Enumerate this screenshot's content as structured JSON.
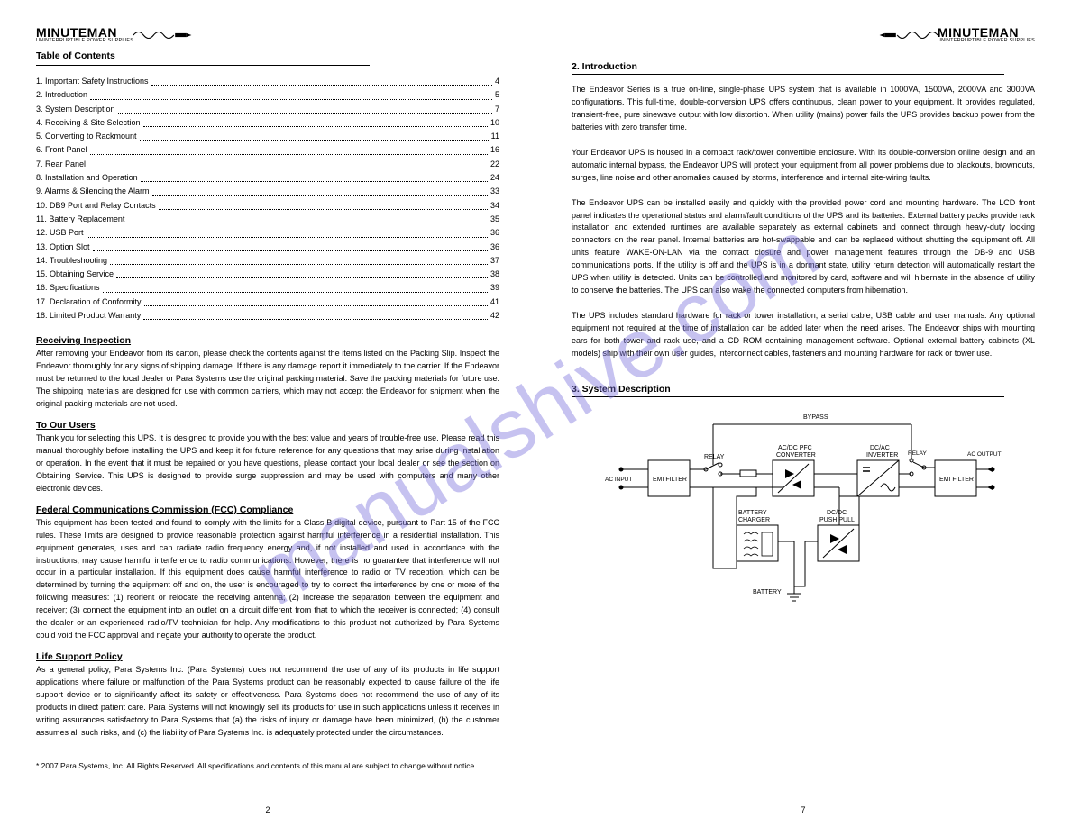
{
  "watermark": "manualshive.com",
  "logo": {
    "main": "MINUTEMAN",
    "sub": "UNINTERRUPTIBLE POWER SUPPLIES"
  },
  "left": {
    "toc_title": "Table of Contents",
    "toc": [
      {
        "label": "1. Important Safety Instructions",
        "page": "4"
      },
      {
        "label": "2. Introduction",
        "page": "5"
      },
      {
        "label": "3. System Description",
        "page": "7"
      },
      {
        "label": "4. Receiving & Site Selection",
        "page": "10"
      },
      {
        "label": "5. Converting to Rackmount",
        "page": "11"
      },
      {
        "label": "6. Front Panel",
        "page": "16"
      },
      {
        "label": "7. Rear Panel",
        "page": "22"
      },
      {
        "label": "8. Installation and Operation",
        "page": "24"
      },
      {
        "label": "9. Alarms & Silencing the Alarm",
        "page": "33"
      },
      {
        "label": "10. DB9 Port and Relay Contacts",
        "page": "34"
      },
      {
        "label": "11. Battery Replacement",
        "page": "35"
      },
      {
        "label": "12. USB Port",
        "page": "36"
      },
      {
        "label": "13. Option Slot",
        "page": "36"
      },
      {
        "label": "14. Troubleshooting",
        "page": "37"
      },
      {
        "label": "15. Obtaining Service",
        "page": "38"
      },
      {
        "label": "16. Specifications",
        "page": "39"
      },
      {
        "label": "17. Declaration of Conformity",
        "page": "41"
      },
      {
        "label": "18. Limited Product Warranty",
        "page": "42"
      }
    ],
    "receiving_title": "Receiving Inspection",
    "receiving_body": "After removing your Endeavor from its carton, please check the contents against the items listed on the Packing Slip. Inspect the Endeavor thoroughly for any signs of shipping damage. If there is any damage report it immediately to the carrier. If the Endeavor must be returned to the local dealer or Para Systems use the original packing material. Save the packing materials for future use. The shipping materials are designed for use with common carriers, which may not accept the Endeavor for shipment when the original packing materials are not used.",
    "note_title": "To Our Users",
    "note_body": "Thank you for selecting this UPS. It is designed to provide you with the best value and years of trouble-free use. Please read this manual thoroughly before installing the UPS and keep it for future reference for any questions that may arise during installation or operation. In the event that it must be repaired or you have questions, please contact your local dealer or see the section on Obtaining Service. This UPS is designed to provide surge suppression and may be used with computers and many other electronic devices.",
    "license_title": "Federal Communications Commission (FCC) Compliance",
    "license_body": "This equipment has been tested and found to comply with the limits for a Class B digital device, pursuant to Part 15 of the FCC rules. These limits are designed to provide reasonable protection against harmful interference in a residential installation. This equipment generates, uses and can radiate radio frequency energy and, if not installed and used in accordance with the instructions, may cause harmful interference to radio communications. However, there is no guarantee that interference will not occur in a particular installation. If this equipment does cause harmful interference to radio or TV reception, which can be determined by turning the equipment off and on, the user is encouraged to try to correct the interference by one or more of the following measures: (1) reorient or relocate the receiving antenna; (2) increase the separation between the equipment and receiver; (3) connect the equipment into an outlet on a circuit different from that to which the receiver is connected; (4) consult the dealer or an experienced radio/TV technician for help. Any modifications to this product not authorized by Para Systems could void the FCC approval and negate your authority to operate the product.",
    "life_title": "Life Support Policy",
    "life_body": "As a general policy, Para Systems Inc. (Para Systems) does not recommend the use of any of its products in life support applications where failure or malfunction of the Para Systems product can be reasonably expected to cause failure of the life support device or to significantly affect its safety or effectiveness. Para Systems does not recommend the use of any of its products in direct patient care. Para Systems will not knowingly sell its products for use in such applications unless it receives in writing assurances satisfactory to Para Systems that (a) the risks of injury or damage have been minimized, (b) the customer assumes all such risks, and (c) the liability of Para Systems Inc. is adequately protected under the circumstances.",
    "star_note": "* 2007 Para Systems, Inc. All Rights Reserved. All specifications and contents of this manual are subject to change without notice.",
    "page_num": "2"
  },
  "right": {
    "intro_title": "2. Introduction",
    "intro_body1": "The Endeavor Series is a true on-line, single-phase UPS system that is available in 1000VA, 1500VA, 2000VA and 3000VA configurations. This full-time, double-conversion UPS offers continuous, clean power to your equipment. It provides regulated, transient-free, pure sinewave output with low distortion. When utility (mains) power fails the UPS provides backup power from the batteries with zero transfer time.",
    "intro_body2": "Your Endeavor UPS is housed in a compact rack/tower convertible enclosure. With its double-conversion online design and an automatic internal bypass, the Endeavor UPS will protect your equipment from all power problems due to blackouts, brownouts, surges, line noise and other anomalies caused by storms, interference and internal site-wiring faults.",
    "intro_body3": "The Endeavor UPS can be installed easily and quickly with the provided power cord and mounting hardware. The LCD front panel indicates the operational status and alarm/fault conditions of the UPS and its batteries. External battery packs provide rack installation and extended runtimes are available separately as external cabinets and connect through heavy-duty locking connectors on the rear panel. Internal batteries are hot-swappable and can be replaced without shutting the equipment off. All units feature WAKE-ON-LAN via the contact closure and power management features through the DB-9 and USB communications ports. If the utility is off and the UPS is in a dormant state, utility return detection will automatically restart the UPS when utility is detected. Units can be controlled and monitored by card, software and will hibernate in the absence of utility to conserve the batteries. The UPS can also wake the connected computers from hibernation.",
    "intro_body4": "The UPS includes standard hardware for rack or tower installation, a serial cable, USB cable and user manuals. Any optional equipment not required at the time of installation can be added later when the need arises. The Endeavor ships with mounting ears for both tower and rack use, and a CD ROM containing management software. Optional external battery cabinets (XL models) ship with their own user guides, interconnect cables, fasteners and mounting hardware for rack or tower use.",
    "diag_title": "3. System Description",
    "diag_labels": {
      "bypass": "BYPASS",
      "relay": "RELAY",
      "acdc": "AC/DC PFC",
      "conv": "CONVERTER",
      "dcac": "DC/AC",
      "inv": "INVERTER",
      "acin": "AC INPUT",
      "emi": "EMI FILTER",
      "acout": "AC OUTPUT",
      "batchg": "BATTERY",
      "charger": "CHARGER",
      "dcdc": "DC/DC",
      "push": "PUSH PULL",
      "battery": "BATTERY"
    },
    "page_num": "7"
  },
  "colors": {
    "text": "#000000",
    "bg": "#ffffff",
    "watermark": "rgba(120,110,220,0.42)"
  }
}
